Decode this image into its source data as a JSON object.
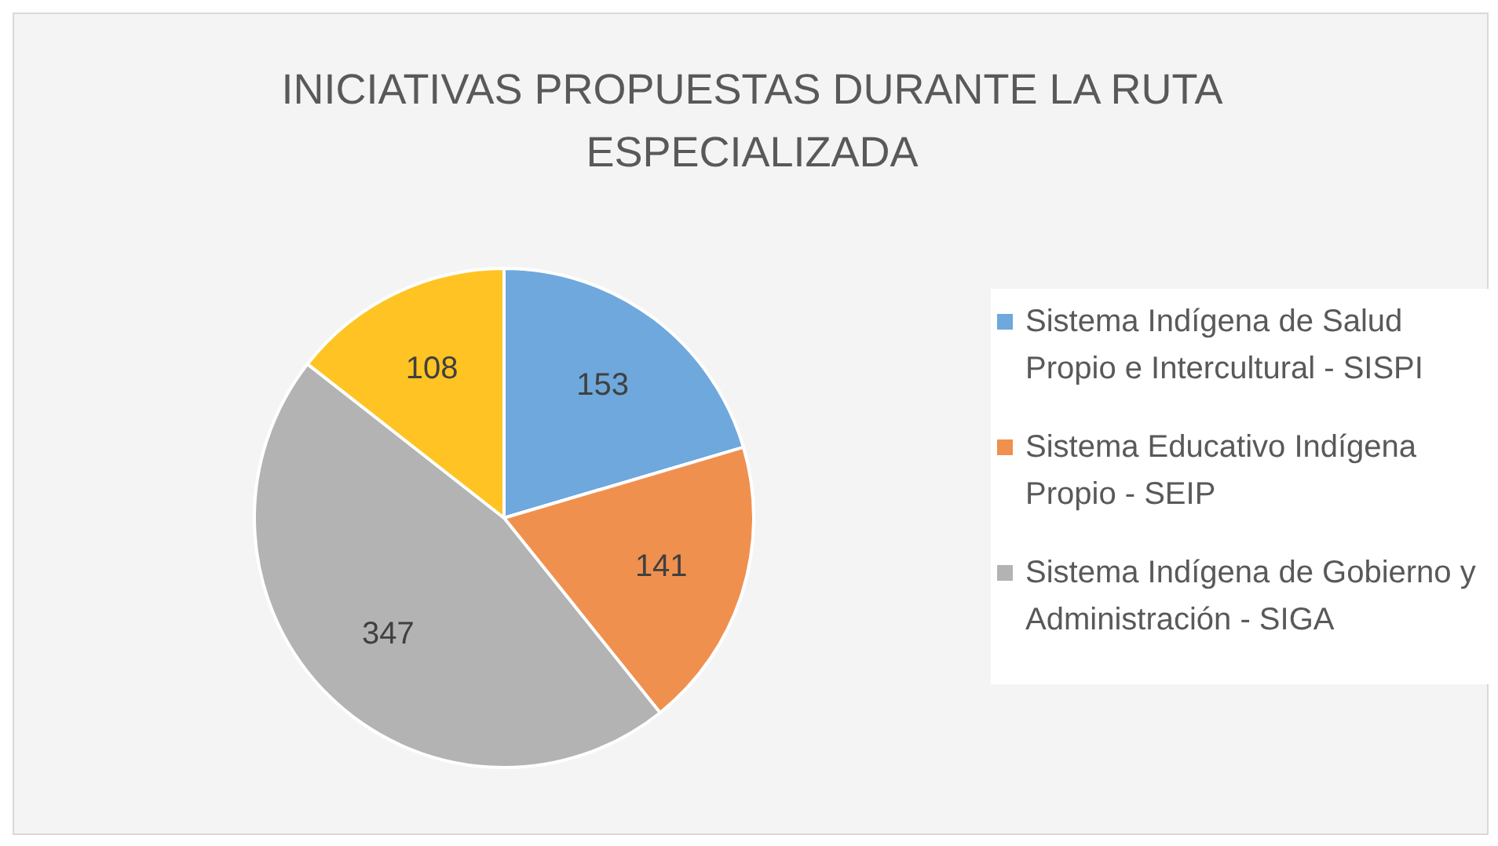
{
  "chart_data": {
    "type": "pie",
    "title": "INICIATIVAS PROPUESTAS DURANTE LA RUTA ESPECIALIZADA",
    "categories": [
      "Sistema Indígena de Salud Propio e Intercultural - SISPI",
      "Sistema Educativo Indígena Propio - SEIP",
      "Sistema Indígena de Gobierno y Administración - SIGA",
      null
    ],
    "values": [
      153,
      141,
      347,
      108
    ],
    "colors": [
      "#6fa8dc",
      "#f0904f",
      "#b3b3b3",
      "#ffc423"
    ],
    "data_labels": true,
    "legend": "right"
  }
}
